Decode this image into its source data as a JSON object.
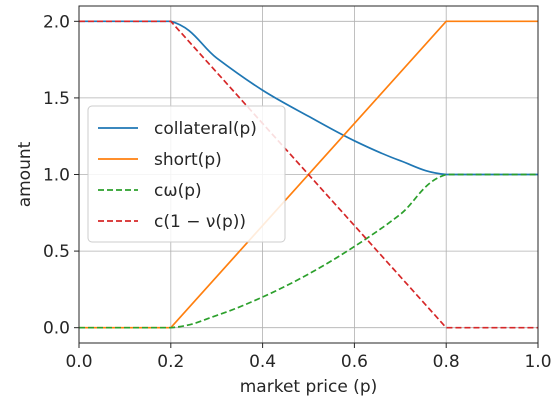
{
  "chart_data": {
    "type": "line",
    "title": "",
    "xlabel": "market price (p)",
    "ylabel": "amount",
    "xlim": [
      0,
      1
    ],
    "ylim": [
      -0.1,
      2.1
    ],
    "xticks": [
      "0.0",
      "0.2",
      "0.4",
      "0.6",
      "0.8",
      "1.0"
    ],
    "yticks": [
      "0.0",
      "0.5",
      "1.0",
      "1.5",
      "2.0"
    ],
    "grid": true,
    "legend_position": "center-left",
    "series": [
      {
        "name": "collateral(p)",
        "color": "#1f77b4",
        "dash": "solid",
        "x": [
          0,
          0.2,
          0.3,
          0.4,
          0.5,
          0.6,
          0.7,
          0.8,
          1.0
        ],
        "y": [
          2,
          2,
          1.76,
          1.55,
          1.38,
          1.22,
          1.09,
          1.0,
          1.0
        ]
      },
      {
        "name": "short(p)",
        "color": "#ff7f0e",
        "dash": "solid",
        "x": [
          0,
          0.2,
          0.8,
          1.0
        ],
        "y": [
          0,
          0,
          2,
          2
        ]
      },
      {
        "name": "cω(p)",
        "color": "#2ca02c",
        "dash": "dashed",
        "x": [
          0,
          0.2,
          0.3,
          0.4,
          0.5,
          0.6,
          0.7,
          0.8,
          1.0
        ],
        "y": [
          0,
          0,
          0.08,
          0.2,
          0.35,
          0.53,
          0.74,
          1.0,
          1.0
        ]
      },
      {
        "name": "c(1 − ν(p))",
        "color": "#d62728",
        "dash": "dashed",
        "x": [
          0,
          0.2,
          0.8,
          1.0
        ],
        "y": [
          2,
          2,
          0,
          0
        ]
      }
    ]
  }
}
